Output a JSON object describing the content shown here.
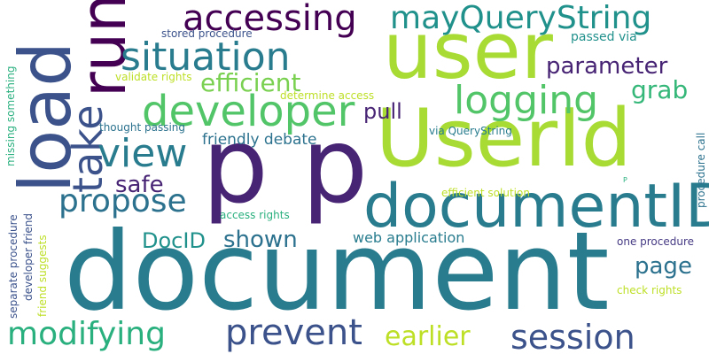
{
  "words": [
    "document",
    "user",
    "p p",
    "UserId",
    "documentID",
    "load",
    "run",
    "developer",
    "situation",
    "accessing",
    "mayQueryString",
    "logging",
    "take",
    "view",
    "propose",
    "efficient",
    "prevent",
    "modifying",
    "session",
    "earlier",
    "parameter",
    "pull",
    "grab",
    "page",
    "safe",
    "shown",
    "DocID",
    "friendly debate",
    "web application",
    "stored procedure",
    "passed via",
    "validate rights",
    "determine access",
    "thought passing",
    "via QueryString",
    "missing something",
    "separate procedure",
    "developer friend",
    "friend suggests",
    "efficient solution",
    "access rights",
    "one procedure",
    "check rights",
    "procedure call",
    "P"
  ]
}
